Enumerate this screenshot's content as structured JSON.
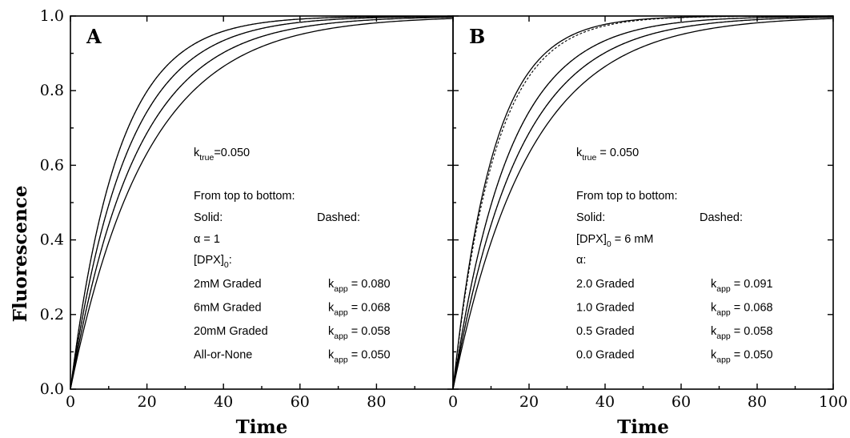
{
  "chart_data": {
    "type": "line",
    "ylabel": "Fluorescence",
    "xlabel": "Time",
    "xlim": [
      0,
      100
    ],
    "ylim": [
      0.0,
      1.0
    ],
    "x_ticks": [
      "0",
      "20",
      "40",
      "60",
      "80",
      "100"
    ],
    "y_ticks": [
      "0.0",
      "0.2",
      "0.4",
      "0.6",
      "0.8",
      "1.0"
    ],
    "panels": [
      {
        "letter": "A",
        "k_true": {
          "k": "k",
          "sub": "true",
          "rest": "=0.050"
        },
        "heading": "From top to bottom:",
        "solid_label": "Solid:",
        "dashed_label": "Dashed:",
        "param_line": {
          "main": "α = 1"
        },
        "param_line2": {
          "main": "[DPX]",
          "sub": "0",
          "rest": ":"
        },
        "rows": [
          {
            "label": "2mM  Graded",
            "kapp": "= 0.080"
          },
          {
            "label": "6mM  Graded",
            "kapp": "= 0.068"
          },
          {
            "label": "20mM Graded",
            "kapp": "= 0.058"
          },
          {
            "label": "All-or-None",
            "kapp": "= 0.050"
          }
        ],
        "series": [
          {
            "style": "solid",
            "k": 0.08
          },
          {
            "style": "dashed",
            "k": 0.08
          },
          {
            "style": "solid",
            "k": 0.068
          },
          {
            "style": "dashed",
            "k": 0.068
          },
          {
            "style": "solid",
            "k": 0.058
          },
          {
            "style": "dashed",
            "k": 0.058
          },
          {
            "style": "solid",
            "k": 0.05
          }
        ]
      },
      {
        "letter": "B",
        "k_true": {
          "k": "k",
          "sub": "true",
          "rest": " = 0.050"
        },
        "heading": "From top to bottom:",
        "solid_label": "Solid:",
        "dashed_label": "Dashed:",
        "param_line": {
          "main": "[DPX]",
          "sub": "0",
          "rest": " = 6 mM"
        },
        "param_line2": {
          "main": "α:"
        },
        "rows": [
          {
            "label": "2.0  Graded",
            "kapp": "= 0.091"
          },
          {
            "label": "1.0  Graded",
            "kapp": "= 0.068"
          },
          {
            "label": "0.5  Graded",
            "kapp": "= 0.058"
          },
          {
            "label": "0.0  Graded",
            "kapp": "= 0.050"
          }
        ],
        "series": [
          {
            "style": "solid",
            "k": 0.095
          },
          {
            "style": "dashed",
            "k": 0.091
          },
          {
            "style": "solid",
            "k": 0.068
          },
          {
            "style": "dashed",
            "k": 0.068
          },
          {
            "style": "solid",
            "k": 0.058
          },
          {
            "style": "dashed",
            "k": 0.058
          },
          {
            "style": "solid",
            "k": 0.05
          }
        ]
      }
    ]
  },
  "kapp_symbol": {
    "k": "k",
    "sub": "app"
  }
}
